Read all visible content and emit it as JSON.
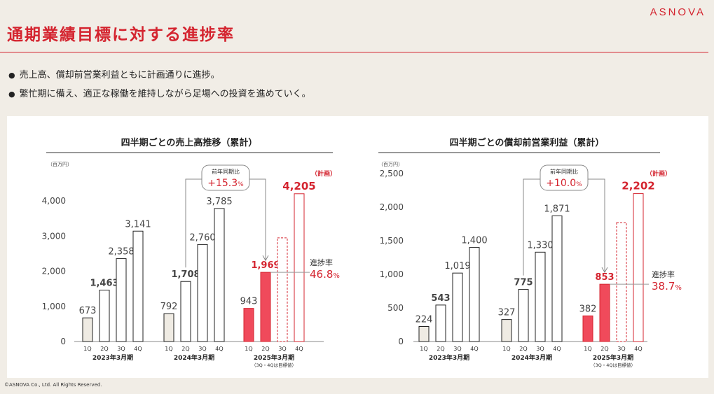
{
  "brand": "ASNOVA",
  "page_title": "通期業績目標に対する進捗率",
  "bullets": [
    "売上高、償却前営業利益ともに計画通りに進捗。",
    "繁忙期に備え、適正な稼働を維持しながら足場への投資を進めていく。"
  ],
  "copyright": "©ASNOVA Co., Ltd. All Rights Reserved.",
  "colors": {
    "accent": "#d4242f",
    "bar_fill_red": "#f04a5b",
    "bar_q1": "#efebe3",
    "bar_outline": "#222222"
  },
  "chart_data": [
    {
      "type": "bar",
      "title": "四半期ごとの売上高推移（累計）",
      "unit": "（百万円）",
      "ylim": [
        0,
        4500
      ],
      "yticks": [
        0,
        1000,
        2000,
        3000,
        4000
      ],
      "ytick_labels": [
        "0",
        "1,000",
        "2,000",
        "3,000",
        "4,000"
      ],
      "categories": [
        "1Q",
        "2Q",
        "3Q",
        "4Q"
      ],
      "groups": [
        {
          "label": "2023年3月期",
          "sub": "",
          "values": [
            673,
            1463,
            2358,
            3141
          ],
          "labels": [
            "673",
            "1,463",
            "2,358",
            "3,141"
          ],
          "plan": [
            false,
            false,
            false,
            false
          ]
        },
        {
          "label": "2024年3月期",
          "sub": "",
          "values": [
            792,
            1708,
            2760,
            3785
          ],
          "labels": [
            "792",
            "1,708",
            "2,760",
            "3,785"
          ],
          "plan": [
            false,
            false,
            false,
            false
          ]
        },
        {
          "label": "2025年3月期",
          "sub": "（3Q・4Qは目標値）",
          "values": [
            943,
            1969,
            2950,
            4205
          ],
          "labels": [
            "943",
            "1,969",
            "",
            "4,205"
          ],
          "plan": [
            false,
            false,
            true,
            true
          ]
        }
      ],
      "yoy_label": "前年同期比",
      "yoy_value": "+15.3",
      "yoy_unit": "%",
      "plan_label": "（計画）",
      "progress_label": "進捗率",
      "progress_value": "46.8",
      "progress_unit": "%"
    },
    {
      "type": "bar",
      "title": "四半期ごとの償却前営業利益（累計）",
      "unit": "（百万円）",
      "ylim": [
        0,
        2500
      ],
      "yticks": [
        0,
        500,
        1000,
        1500,
        2000,
        2500
      ],
      "ytick_labels": [
        "0",
        "500",
        "1,000",
        "1,500",
        "2,000",
        "2,500"
      ],
      "categories": [
        "1Q",
        "2Q",
        "3Q",
        "4Q"
      ],
      "groups": [
        {
          "label": "2023年3月期",
          "sub": "",
          "values": [
            224,
            543,
            1019,
            1400
          ],
          "labels": [
            "224",
            "543",
            "1,019",
            "1,400"
          ],
          "plan": [
            false,
            false,
            false,
            false
          ]
        },
        {
          "label": "2024年3月期",
          "sub": "",
          "values": [
            327,
            775,
            1330,
            1871
          ],
          "labels": [
            "327",
            "775",
            "1,330",
            "1,871"
          ],
          "plan": [
            false,
            false,
            false,
            false
          ]
        },
        {
          "label": "2025年3月期",
          "sub": "（3Q・4Qは目標値）",
          "values": [
            382,
            853,
            1770,
            2202
          ],
          "labels": [
            "382",
            "853",
            "",
            "2,202"
          ],
          "plan": [
            false,
            false,
            true,
            true
          ]
        }
      ],
      "yoy_label": "前年同期比",
      "yoy_value": "+10.0",
      "yoy_unit": "%",
      "plan_label": "（計画）",
      "progress_label": "進捗率",
      "progress_value": "38.7",
      "progress_unit": "%"
    }
  ]
}
